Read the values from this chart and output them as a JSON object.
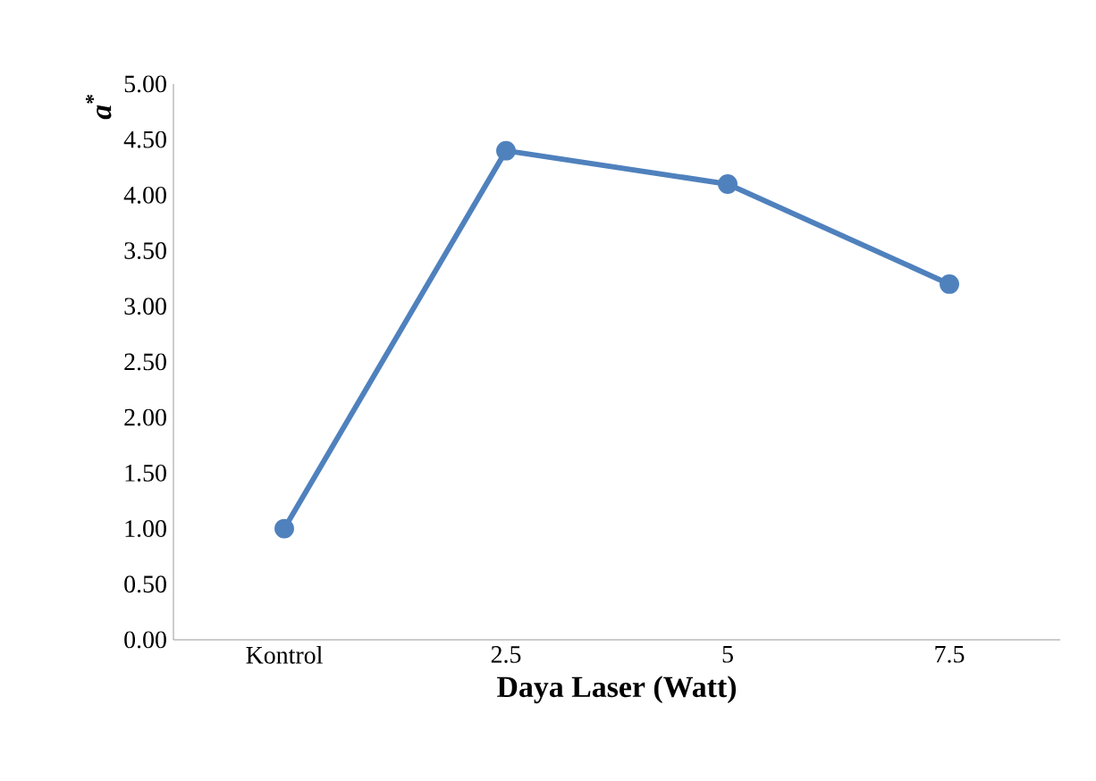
{
  "chart_data": {
    "type": "line",
    "xlabel": "Daya Laser (Watt)",
    "ylabel": "*a*$^{*}$",
    "categories": [
      "Kontrol",
      "2.5",
      "5",
      "7.5"
    ],
    "values": [
      1.0,
      4.4,
      4.1,
      3.2
    ],
    "color": "#4f81bd",
    "marker": "circle",
    "line_style": "solid",
    "ylim": [
      0,
      5
    ],
    "yticks": [
      {
        "value": 0,
        "label": "0.00"
      },
      {
        "value": 0.5,
        "label": "0.50"
      },
      {
        "value": 1,
        "label": "1.00"
      },
      {
        "value": 1.5,
        "label": "1.50"
      },
      {
        "value": 2,
        "label": "2.00"
      },
      {
        "value": 2.5,
        "label": "2.50"
      },
      {
        "value": 3,
        "label": "3.00"
      },
      {
        "value": 3.5,
        "label": "3.50"
      },
      {
        "value": 4,
        "label": "4.00"
      },
      {
        "value": 4.5,
        "label": "4.50"
      },
      {
        "value": 5,
        "label": "5.00"
      }
    ]
  }
}
